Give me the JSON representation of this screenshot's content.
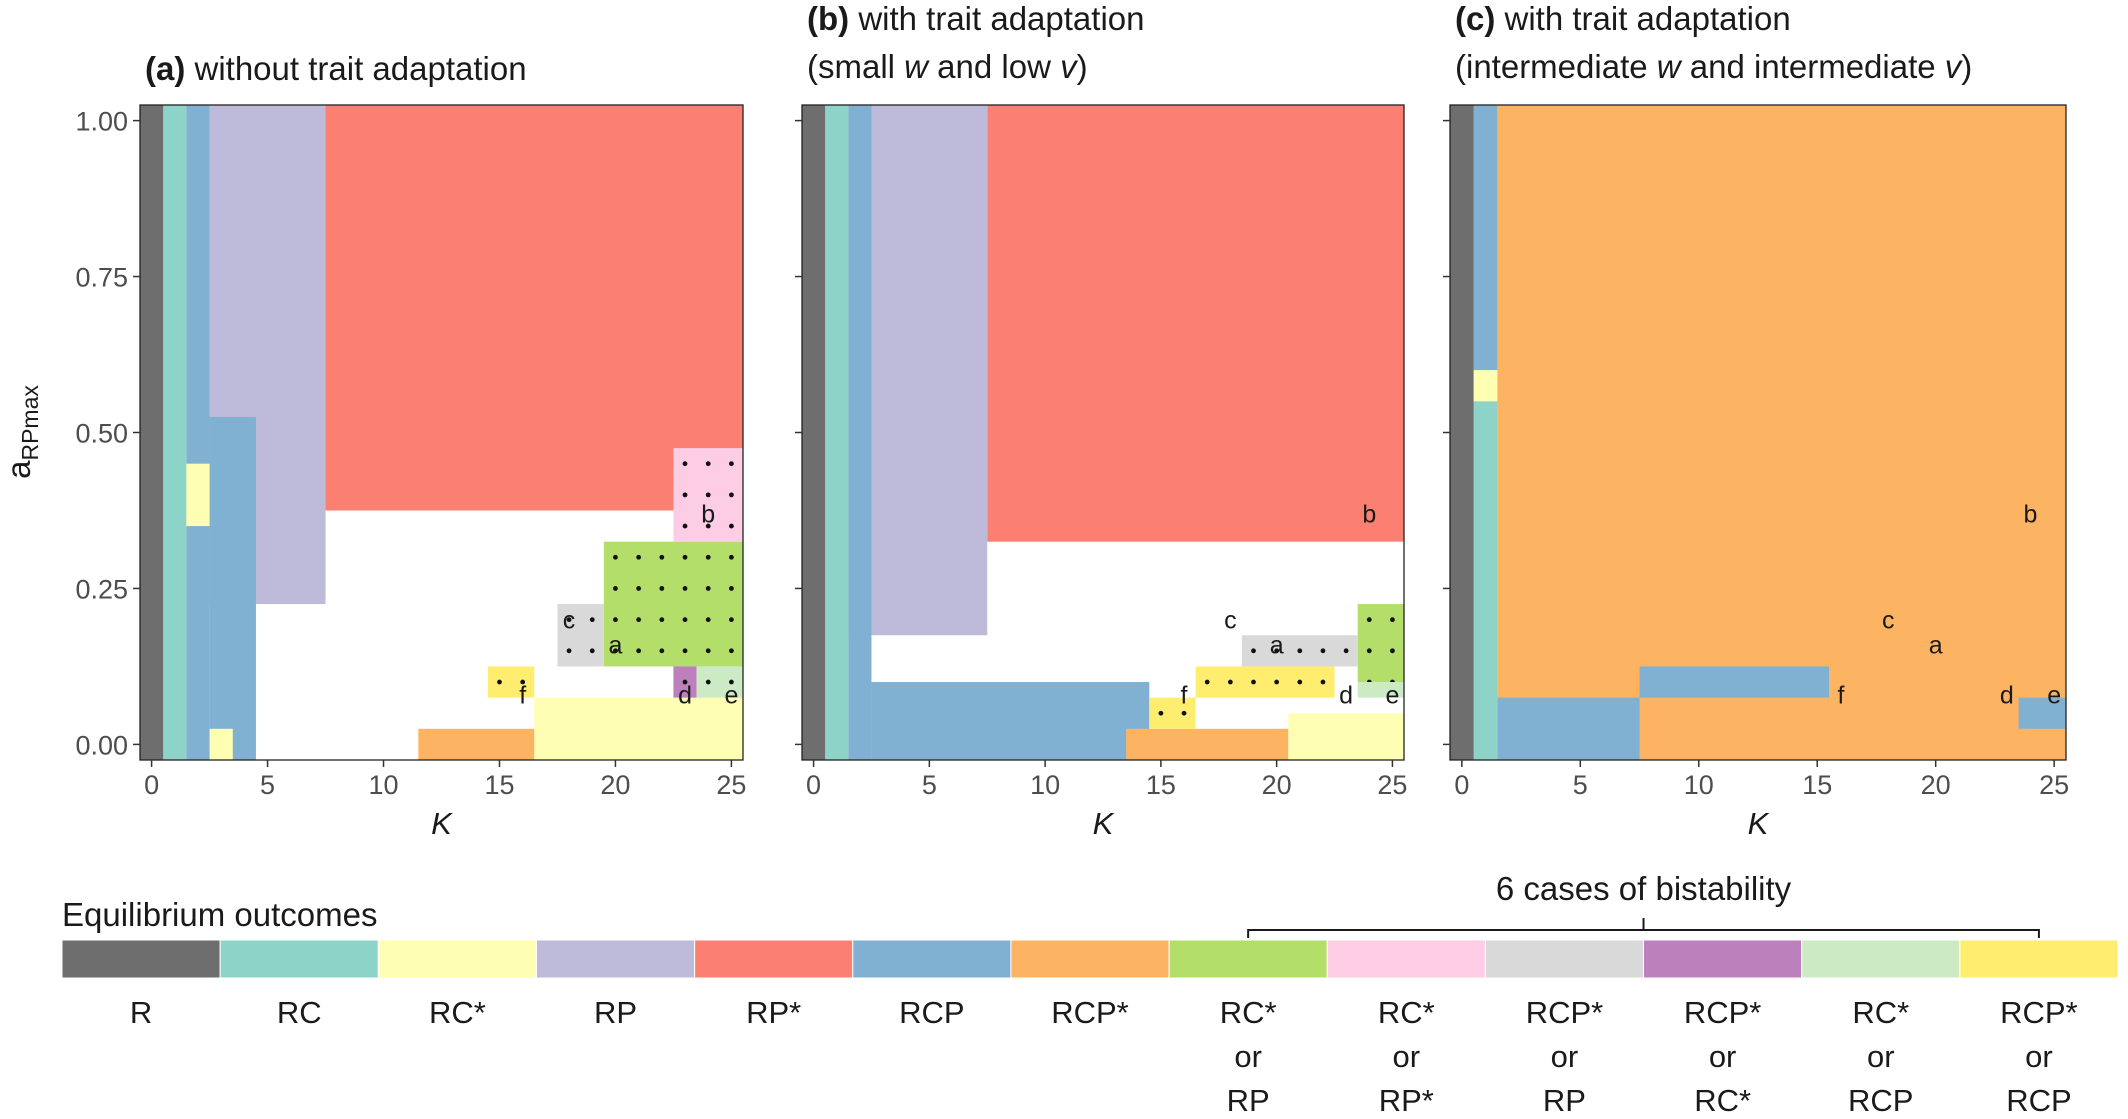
{
  "colors": {
    "R": "#6e6e6e",
    "RC": "#8dd3c7",
    "RCs": "#ffffb3",
    "RP": "#bebada",
    "RPs": "#fb8072",
    "RCP": "#80b1d3",
    "RCPs": "#fdb462",
    "RCsRP": "#b3de69",
    "RCsRPs": "#fccde5",
    "RCPsRP": "#d9d9d9",
    "RCPsRCs": "#bc80bd",
    "RCsRCP": "#ccebc5",
    "RCPsRCP": "#ffed6f"
  },
  "y_axis_label": {
    "main": "a",
    "sub": "RPmax"
  },
  "x_axis_label": "K",
  "chart_data": [
    {
      "type": "heatmap",
      "title_prefix": "(a)",
      "title_lines": [
        [
          {
            "t": "without trait adaptation"
          }
        ]
      ],
      "xlabel": "K",
      "ylabel": "aRPmax",
      "xlim": [
        -0.5,
        25.5
      ],
      "ylim": [
        -0.025,
        1.025
      ],
      "x_ticks": [
        "0",
        "5",
        "10",
        "15",
        "20",
        "25"
      ],
      "y_ticks": [
        "0.00",
        "0.25",
        "0.50",
        "0.75",
        "1.00"
      ],
      "grid": false,
      "regions": [
        {
          "o": "RPs",
          "x": [
            7.5,
            25.5
          ],
          "y": [
            0.375,
            1.025
          ]
        },
        {
          "o": "RP",
          "x": [
            2.5,
            7.5
          ],
          "y": [
            0.225,
            1.025
          ]
        },
        {
          "o": "RCP",
          "x": [
            1.5,
            2.5
          ],
          "y": [
            -0.025,
            1.025
          ]
        },
        {
          "o": "RCP",
          "x": [
            2.5,
            4.5
          ],
          "y": [
            -0.025,
            0.525
          ]
        },
        {
          "o": "RC",
          "x": [
            0.5,
            1.5
          ],
          "y": [
            -0.025,
            1.025
          ]
        },
        {
          "o": "R",
          "x": [
            -0.5,
            0.5
          ],
          "y": [
            -0.025,
            1.025
          ]
        },
        {
          "o": "RCs",
          "x": [
            1.5,
            2.5
          ],
          "y": [
            0.35,
            0.45
          ]
        },
        {
          "o": "RCs",
          "x": [
            2.5,
            3.5
          ],
          "y": [
            -0.025,
            0.025
          ]
        },
        {
          "o": "RCs",
          "x": [
            16.5,
            25.5
          ],
          "y": [
            -0.025,
            0.075
          ]
        },
        {
          "o": "RCPs",
          "x": [
            11.5,
            16.5
          ],
          "y": [
            -0.025,
            0.025
          ]
        },
        {
          "o": "RCsRP",
          "x": [
            19.5,
            25.5
          ],
          "y": [
            0.125,
            0.325
          ]
        },
        {
          "o": "RCsRPs",
          "x": [
            22.5,
            25.5
          ],
          "y": [
            0.325,
            0.475
          ]
        },
        {
          "o": "RCPsRP",
          "x": [
            17.5,
            19.5
          ],
          "y": [
            0.125,
            0.225
          ]
        },
        {
          "o": "RCPsRCs",
          "x": [
            22.5,
            23.5
          ],
          "y": [
            0.075,
            0.125
          ]
        },
        {
          "o": "RCsRCP",
          "x": [
            23.5,
            25.5
          ],
          "y": [
            0.075,
            0.125
          ]
        },
        {
          "o": "RCPsRCP",
          "x": [
            14.5,
            16.5
          ],
          "y": [
            0.075,
            0.125
          ]
        }
      ],
      "labels": [
        {
          "t": "a",
          "x": 20,
          "y": 0.16
        },
        {
          "t": "b",
          "x": 24,
          "y": 0.37
        },
        {
          "t": "c",
          "x": 18,
          "y": 0.2
        },
        {
          "t": "d",
          "x": 23,
          "y": 0.08
        },
        {
          "t": "e",
          "x": 25,
          "y": 0.08
        },
        {
          "t": "f",
          "x": 16,
          "y": 0.08
        }
      ]
    },
    {
      "type": "heatmap",
      "title_prefix": "(b)",
      "title_lines": [
        [
          {
            "t": "with trait adaptation"
          }
        ],
        [
          {
            "t": "(small "
          },
          {
            "t": "w",
            "i": true
          },
          {
            "t": " and low "
          },
          {
            "t": "v",
            "i": true
          },
          {
            "t": ")"
          }
        ]
      ],
      "xlabel": "K",
      "ylabel": "aRPmax",
      "xlim": [
        -0.5,
        25.5
      ],
      "ylim": [
        -0.025,
        1.025
      ],
      "x_ticks": [
        "0",
        "5",
        "10",
        "15",
        "20",
        "25"
      ],
      "y_ticks": [
        "0.00",
        "0.25",
        "0.50",
        "0.75",
        "1.00"
      ],
      "grid": false,
      "regions": [
        {
          "o": "RPs",
          "x": [
            7.5,
            25.5
          ],
          "y": [
            0.325,
            1.025
          ]
        },
        {
          "o": "RP",
          "x": [
            1.5,
            7.5
          ],
          "y": [
            0.175,
            1.025
          ]
        },
        {
          "o": "RCP",
          "x": [
            1.5,
            2.5
          ],
          "y": [
            -0.025,
            1.025
          ]
        },
        {
          "o": "RCP",
          "x": [
            2.5,
            14.5
          ],
          "y": [
            -0.025,
            0.1
          ]
        },
        {
          "o": "RC",
          "x": [
            0.5,
            1.5
          ],
          "y": [
            -0.025,
            1.025
          ]
        },
        {
          "o": "R",
          "x": [
            -0.5,
            0.5
          ],
          "y": [
            -0.025,
            1.025
          ]
        },
        {
          "o": "RCs",
          "x": [
            20.5,
            25.5
          ],
          "y": [
            -0.025,
            0.05
          ]
        },
        {
          "o": "RCPs",
          "x": [
            13.5,
            20.5
          ],
          "y": [
            -0.025,
            0.025
          ]
        },
        {
          "o": "RCsRP",
          "x": [
            23.5,
            25.5
          ],
          "y": [
            0.1,
            0.225
          ]
        },
        {
          "o": "RCPsRP",
          "x": [
            18.5,
            23.5
          ],
          "y": [
            0.125,
            0.175
          ]
        },
        {
          "o": "RCPsRCP",
          "x": [
            16.5,
            22.5
          ],
          "y": [
            0.075,
            0.125
          ]
        },
        {
          "o": "RCPsRCP",
          "x": [
            14.5,
            16.5
          ],
          "y": [
            0.025,
            0.075
          ]
        },
        {
          "o": "RCsRCP",
          "x": [
            23.5,
            25.5
          ],
          "y": [
            0.075,
            0.1
          ]
        }
      ],
      "labels": [
        {
          "t": "a",
          "x": 20,
          "y": 0.16
        },
        {
          "t": "b",
          "x": 24,
          "y": 0.37
        },
        {
          "t": "c",
          "x": 18,
          "y": 0.2
        },
        {
          "t": "d",
          "x": 23,
          "y": 0.08
        },
        {
          "t": "e",
          "x": 25,
          "y": 0.08
        },
        {
          "t": "f",
          "x": 16,
          "y": 0.08
        }
      ]
    },
    {
      "type": "heatmap",
      "title_prefix": "(c)",
      "title_lines": [
        [
          {
            "t": "with trait adaptation"
          }
        ],
        [
          {
            "t": "(intermediate "
          },
          {
            "t": "w",
            "i": true
          },
          {
            "t": " and intermediate "
          },
          {
            "t": "v",
            "i": true
          },
          {
            "t": ")"
          }
        ]
      ],
      "xlabel": "K",
      "ylabel": "aRPmax",
      "xlim": [
        -0.5,
        25.5
      ],
      "ylim": [
        -0.025,
        1.025
      ],
      "x_ticks": [
        "0",
        "5",
        "10",
        "15",
        "20",
        "25"
      ],
      "y_ticks": [
        "0.00",
        "0.25",
        "0.50",
        "0.75",
        "1.00"
      ],
      "grid": false,
      "regions": [
        {
          "o": "RCPs",
          "x": [
            1.5,
            25.5
          ],
          "y": [
            -0.025,
            1.025
          ]
        },
        {
          "o": "RCP",
          "x": [
            1.5,
            7.5
          ],
          "y": [
            -0.025,
            0.075
          ]
        },
        {
          "o": "RCP",
          "x": [
            7.5,
            15.5
          ],
          "y": [
            0.075,
            0.125
          ]
        },
        {
          "o": "RCP",
          "x": [
            23.5,
            25.5
          ],
          "y": [
            0.025,
            0.075
          ]
        },
        {
          "o": "RCP",
          "x": [
            0.5,
            1.5
          ],
          "y": [
            0.6,
            1.025
          ]
        },
        {
          "o": "RC",
          "x": [
            0.5,
            1.5
          ],
          "y": [
            -0.025,
            0.6
          ]
        },
        {
          "o": "R",
          "x": [
            -0.5,
            0.5
          ],
          "y": [
            -0.025,
            1.025
          ]
        },
        {
          "o": "RCs",
          "x": [
            0.5,
            1.5
          ],
          "y": [
            0.55,
            0.6
          ]
        }
      ],
      "labels": [
        {
          "t": "a",
          "x": 20,
          "y": 0.16
        },
        {
          "t": "b",
          "x": 24,
          "y": 0.37
        },
        {
          "t": "c",
          "x": 18,
          "y": 0.2
        },
        {
          "t": "d",
          "x": 23,
          "y": 0.08
        },
        {
          "t": "e",
          "x": 25,
          "y": 0.08
        },
        {
          "t": "f",
          "x": 16,
          "y": 0.08
        }
      ]
    }
  ],
  "legend": {
    "title": "Equilibrium outcomes",
    "bistability_label": "6 cases of bistability",
    "items": [
      {
        "key": "R",
        "lines": [
          "R"
        ]
      },
      {
        "key": "RC",
        "lines": [
          "RC"
        ]
      },
      {
        "key": "RCs",
        "lines": [
          "RC*"
        ]
      },
      {
        "key": "RP",
        "lines": [
          "RP"
        ]
      },
      {
        "key": "RPs",
        "lines": [
          "RP*"
        ]
      },
      {
        "key": "RCP",
        "lines": [
          "RCP"
        ]
      },
      {
        "key": "RCPs",
        "lines": [
          "RCP*"
        ]
      },
      {
        "key": "RCsRP",
        "lines": [
          "RC*",
          "or",
          "RP"
        ]
      },
      {
        "key": "RCsRPs",
        "lines": [
          "RC*",
          "or",
          "RP*"
        ]
      },
      {
        "key": "RCPsRP",
        "lines": [
          "RCP*",
          "or",
          "RP"
        ]
      },
      {
        "key": "RCPsRCs",
        "lines": [
          "RCP*",
          "or",
          "RC*"
        ]
      },
      {
        "key": "RCsRCP",
        "lines": [
          "RC*",
          "or",
          "RCP"
        ]
      },
      {
        "key": "RCPsRCP",
        "lines": [
          "RCP*",
          "or",
          "RCP"
        ]
      }
    ]
  }
}
